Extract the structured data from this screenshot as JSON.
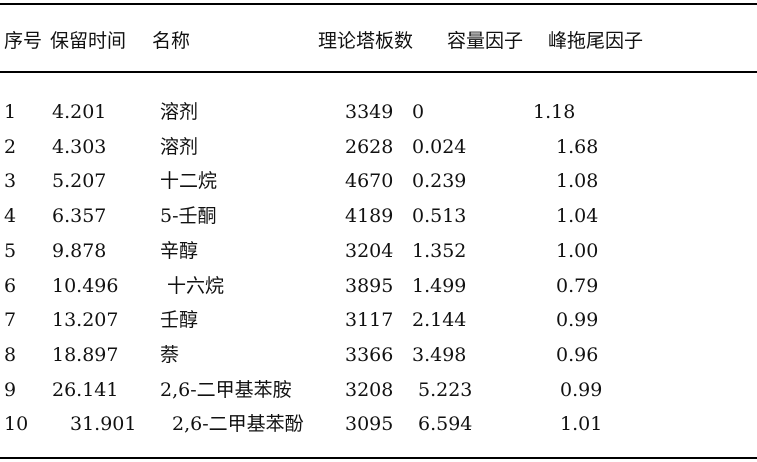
{
  "headers": [
    "序号",
    "保留时间",
    "名称",
    "理论塔板数",
    "容量因子",
    "峰拖尾因子"
  ],
  "rows": [
    [
      "1",
      "4.201",
      "溶剂",
      "3349",
      "0",
      "1.18"
    ],
    [
      "2",
      "4.303",
      "溶剂",
      "2628",
      "0.024",
      "1.68"
    ],
    [
      "3",
      "5.207",
      "十二烷",
      "4670",
      "0.239",
      "1.08"
    ],
    [
      "4",
      "6.357",
      "5-壬酮",
      "4189",
      "0.513",
      "1.04"
    ],
    [
      "5",
      "9.878",
      "辛醇",
      "3204",
      "1.352",
      "1.00"
    ],
    [
      "6",
      "10.496",
      "十六烷",
      "3895",
      "1.499",
      "0.79"
    ],
    [
      "7",
      "13.207",
      "壬醇",
      "3117",
      "2.144",
      "0.99"
    ],
    [
      "8",
      "18.897",
      "萘",
      "3366",
      "3.498",
      "0.96"
    ],
    [
      "9",
      "26.141",
      "2,6-二甲基苯胺",
      "3208",
      "5.223",
      "0.99"
    ],
    [
      "10",
      "31.901",
      "2,6-二甲基苯酚",
      "3095",
      "6.594",
      "1.01"
    ]
  ]
}
